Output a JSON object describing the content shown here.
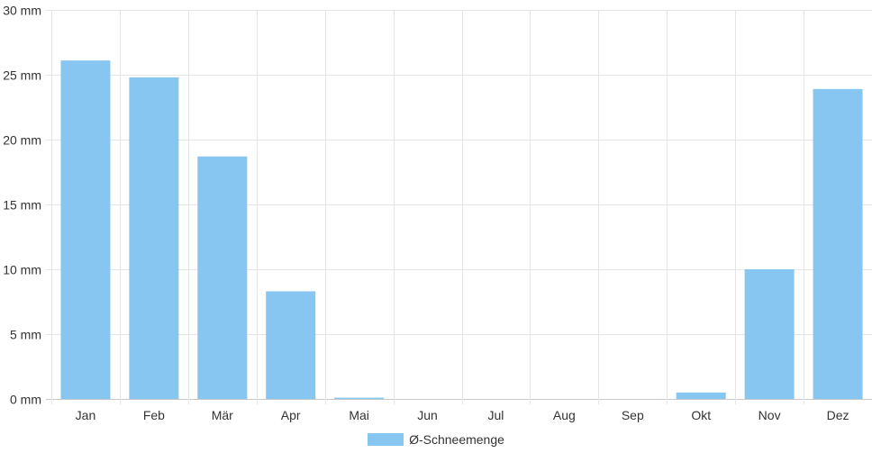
{
  "chart_data": {
    "type": "bar",
    "categories": [
      "Jan",
      "Feb",
      "Mär",
      "Apr",
      "Mai",
      "Jun",
      "Jul",
      "Aug",
      "Sep",
      "Okt",
      "Nov",
      "Dez"
    ],
    "series": [
      {
        "name": "Ø-Schneemenge",
        "values": [
          26.1,
          24.8,
          18.7,
          8.3,
          0.1,
          0,
          0,
          0,
          0,
          0.5,
          10.0,
          23.9
        ],
        "color": "#87c6f1"
      }
    ],
    "yticks": [
      "0 mm",
      "5 mm",
      "10 mm",
      "15 mm",
      "20 mm",
      "25 mm",
      "30 mm"
    ],
    "ylim": [
      0,
      30
    ],
    "y_unit": "mm",
    "grid": true,
    "legend_position": "bottom-center"
  }
}
